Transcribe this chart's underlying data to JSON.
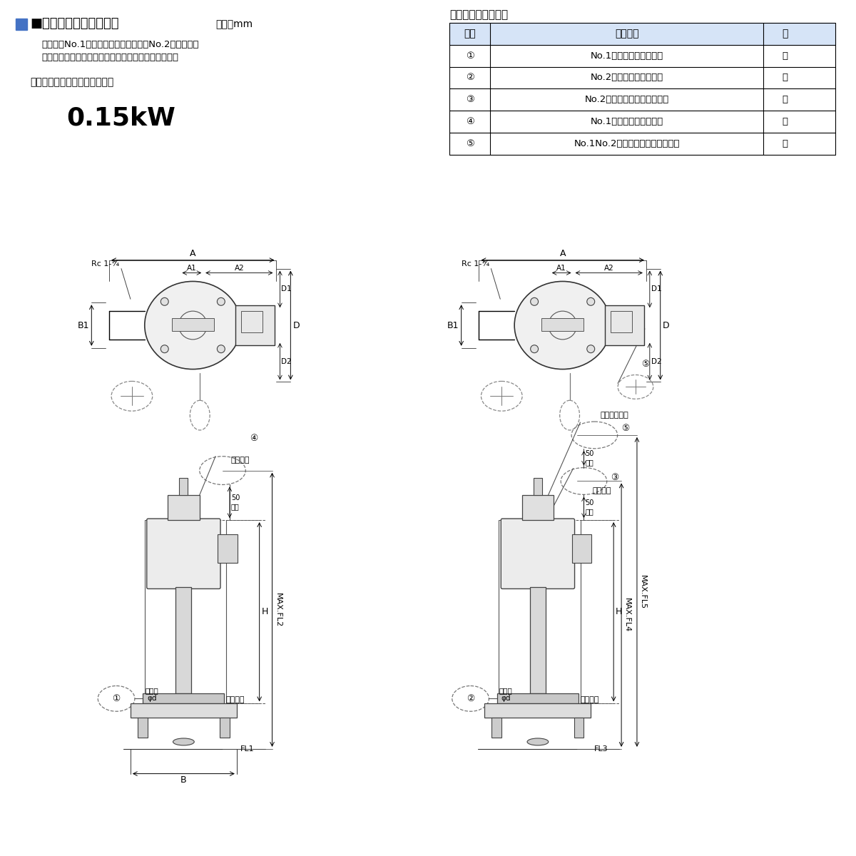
{
  "title_main": "■外形据付寸法図（例）",
  "title_unit": "単位：mm",
  "subtitle1": "自動形（No.1ポンプ）と自動交互形（No.2ポンプ）を",
  "subtitle2": "組み合わすことにより自動交互連動運転を行います。",
  "spec_label": "自動形・自動交互形ベンド仕様",
  "power_label": "0.15kW",
  "float_title": "フロート名称・識別",
  "table_headers": [
    "記号",
    "名　　称",
    "色"
  ],
  "table_rows": [
    [
      "①",
      "No.1ポンプ停止フロート",
      "赤"
    ],
    [
      "②",
      "No.2ポンプ停止フロート",
      "赤"
    ],
    [
      "③",
      "No.2ポンプ交互始動フロート",
      "黄"
    ],
    [
      "④",
      "No.1ポンプ始動フロート",
      "黄"
    ],
    [
      "⑤",
      "No.1No.2ポンプ並列運転フロート",
      "緑"
    ]
  ],
  "header_bg": "#d6e4f7",
  "bg_color": "#ffffff",
  "line_color": "#000000",
  "blue_color": "#4472c4"
}
